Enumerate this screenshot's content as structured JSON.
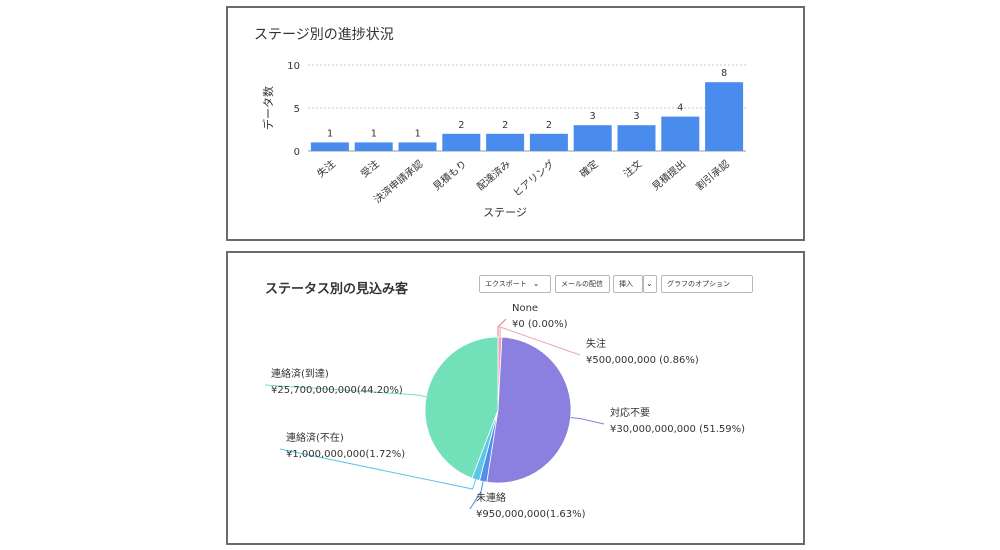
{
  "chart_data": [
    {
      "type": "bar",
      "title": "ステージ別の進捗状況",
      "xlabel": "ステージ",
      "ylabel": "データ数",
      "ylim": [
        0,
        10
      ],
      "yticks": [
        0,
        5,
        10
      ],
      "grid": true,
      "color": "#4a8ced",
      "categories": [
        "失注",
        "受注",
        "決済申請承認",
        "見積もり",
        "配達済み",
        "ヒアリング",
        "確定",
        "注文",
        "見積提出",
        "割引承認"
      ],
      "values": [
        1,
        1,
        1,
        2,
        2,
        2,
        3,
        3,
        4,
        8
      ],
      "data_labels": [
        "1",
        "1",
        "1",
        "2",
        "2",
        "2",
        "3",
        "3",
        "4",
        "8"
      ]
    },
    {
      "type": "pie",
      "title": "ステータス別の見込み客",
      "slices": [
        {
          "name": "None",
          "label": "¥0 (0.00%)",
          "value": 0,
          "color": "#e07b8c"
        },
        {
          "name": "失注",
          "label": "¥500,000,000 (0.86%)",
          "value": 500000000,
          "color": "#f0a1b5"
        },
        {
          "name": "対応不要",
          "label": "¥30,000,000,000 (51.59%)",
          "value": 30000000000,
          "color": "#8b7fe0"
        },
        {
          "name": "未連絡",
          "label": "¥950,000,000(1.63%)",
          "value": 950000000,
          "color": "#4f8fe8"
        },
        {
          "name": "連絡済(不在)",
          "label": "¥1,000,000,000(1.72%)",
          "value": 1000000000,
          "color": "#5cc6e8"
        },
        {
          "name": "連絡済(到達)",
          "label": "¥25,700,000,000(44.20%)",
          "value": 25700000000,
          "color": "#72e0b8"
        }
      ]
    }
  ],
  "toolbar": {
    "export_label": "エクスポート",
    "email_label": "メールの配信",
    "insert_label": "挿入",
    "options_label": "グラフのオプション"
  },
  "icons": {
    "dropdown": "chevron-down-icon"
  }
}
